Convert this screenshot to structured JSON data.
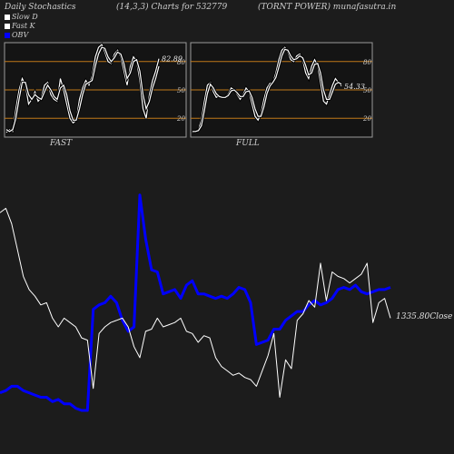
{
  "header": {
    "title": "Daily Stochastics",
    "params": "(14,3,3) Charts for 532779",
    "symbol": "(TORNT POWER) munafasutra.in"
  },
  "legend": [
    {
      "label": "Slow  D",
      "color": "#ffffff"
    },
    {
      "label": "Fast K",
      "color": "#ffffff"
    },
    {
      "label": "OBV",
      "color": "#0000ff"
    }
  ],
  "colors": {
    "background": "#1c1c1c",
    "gridline": "#c07818",
    "stoch": "#ffffff",
    "obv": "#0000ff",
    "close": "#ffffff"
  },
  "chart_data": [
    {
      "type": "line",
      "name": "fast-stochastic",
      "caption": "FAST",
      "yticks": [
        20,
        50,
        80
      ],
      "ylim": [
        0,
        100
      ],
      "last_value_label": "82.89",
      "series": [
        {
          "name": "Fast K",
          "values": [
            5,
            8,
            6,
            30,
            50,
            62,
            55,
            35,
            40,
            48,
            38,
            42,
            55,
            58,
            45,
            40,
            38,
            62,
            50,
            35,
            20,
            15,
            18,
            40,
            52,
            60,
            55,
            65,
            85,
            95,
            98,
            90,
            80,
            78,
            88,
            92,
            85,
            70,
            55,
            75,
            85,
            80,
            60,
            30,
            20,
            45,
            60,
            70,
            83
          ]
        },
        {
          "name": "Slow  D",
          "values": [
            8,
            6,
            8,
            20,
            40,
            58,
            58,
            45,
            40,
            45,
            42,
            40,
            48,
            55,
            50,
            43,
            40,
            52,
            55,
            45,
            28,
            18,
            18,
            30,
            45,
            56,
            58,
            60,
            75,
            88,
            95,
            94,
            85,
            80,
            84,
            90,
            88,
            78,
            62,
            68,
            80,
            82,
            70,
            45,
            30,
            38,
            52,
            62,
            75
          ]
        }
      ]
    },
    {
      "type": "line",
      "name": "full-stochastic",
      "caption": "FULL",
      "yticks": [
        20,
        50,
        80
      ],
      "ylim": [
        0,
        100
      ],
      "last_value_label": "54.33",
      "series": [
        {
          "name": "Fast K",
          "values": [
            5,
            6,
            8,
            18,
            38,
            55,
            58,
            48,
            42,
            44,
            42,
            42,
            46,
            52,
            50,
            45,
            40,
            45,
            52,
            48,
            35,
            22,
            18,
            25,
            40,
            52,
            57,
            58,
            68,
            82,
            92,
            95,
            90,
            82,
            80,
            86,
            88,
            82,
            68,
            62,
            75,
            82,
            76,
            58,
            38,
            35,
            45,
            55,
            62,
            58,
            54
          ]
        },
        {
          "name": "Slow  D",
          "values": [
            6,
            6,
            7,
            12,
            28,
            46,
            56,
            52,
            46,
            43,
            42,
            42,
            44,
            49,
            50,
            47,
            43,
            43,
            48,
            49,
            42,
            30,
            22,
            22,
            32,
            46,
            54,
            58,
            63,
            74,
            86,
            93,
            92,
            86,
            82,
            83,
            86,
            84,
            76,
            66,
            68,
            77,
            78,
            68,
            50,
            40,
            40,
            48,
            56,
            58,
            56
          ]
        }
      ]
    },
    {
      "type": "line",
      "name": "obv-price",
      "close_label": "1335.80",
      "close_suffix": "Close",
      "series": [
        {
          "name": "OBV",
          "values": [
            0.08,
            0.09,
            0.11,
            0.11,
            0.09,
            0.08,
            0.07,
            0.06,
            0.06,
            0.04,
            0.05,
            0.03,
            0.03,
            0.01,
            0.0,
            0.0,
            0.46,
            0.48,
            0.49,
            0.52,
            0.49,
            0.41,
            0.36,
            0.38,
            0.98,
            0.78,
            0.64,
            0.63,
            0.53,
            0.54,
            0.55,
            0.51,
            0.57,
            0.59,
            0.53,
            0.53,
            0.52,
            0.51,
            0.52,
            0.51,
            0.53,
            0.56,
            0.55,
            0.49,
            0.3,
            0.31,
            0.32,
            0.37,
            0.37,
            0.41,
            0.43,
            0.45,
            0.45,
            0.48,
            0.5,
            0.48,
            0.49,
            0.51,
            0.55,
            0.56,
            0.55,
            0.57,
            0.54,
            0.53,
            0.54,
            0.55,
            0.55,
            0.56
          ]
        },
        {
          "name": "Close",
          "values": [
            0.9,
            0.92,
            0.85,
            0.73,
            0.61,
            0.55,
            0.52,
            0.48,
            0.49,
            0.42,
            0.38,
            0.42,
            0.4,
            0.38,
            0.33,
            0.32,
            0.1,
            0.35,
            0.38,
            0.4,
            0.41,
            0.42,
            0.38,
            0.29,
            0.24,
            0.36,
            0.37,
            0.42,
            0.38,
            0.39,
            0.4,
            0.42,
            0.36,
            0.35,
            0.31,
            0.34,
            0.33,
            0.24,
            0.2,
            0.18,
            0.16,
            0.17,
            0.15,
            0.14,
            0.11,
            0.18,
            0.25,
            0.35,
            0.06,
            0.23,
            0.19,
            0.41,
            0.44,
            0.5,
            0.47,
            0.67,
            0.5,
            0.63,
            0.61,
            0.6,
            0.58,
            0.6,
            0.62,
            0.67,
            0.4,
            0.49,
            0.51,
            0.42
          ]
        }
      ]
    }
  ]
}
